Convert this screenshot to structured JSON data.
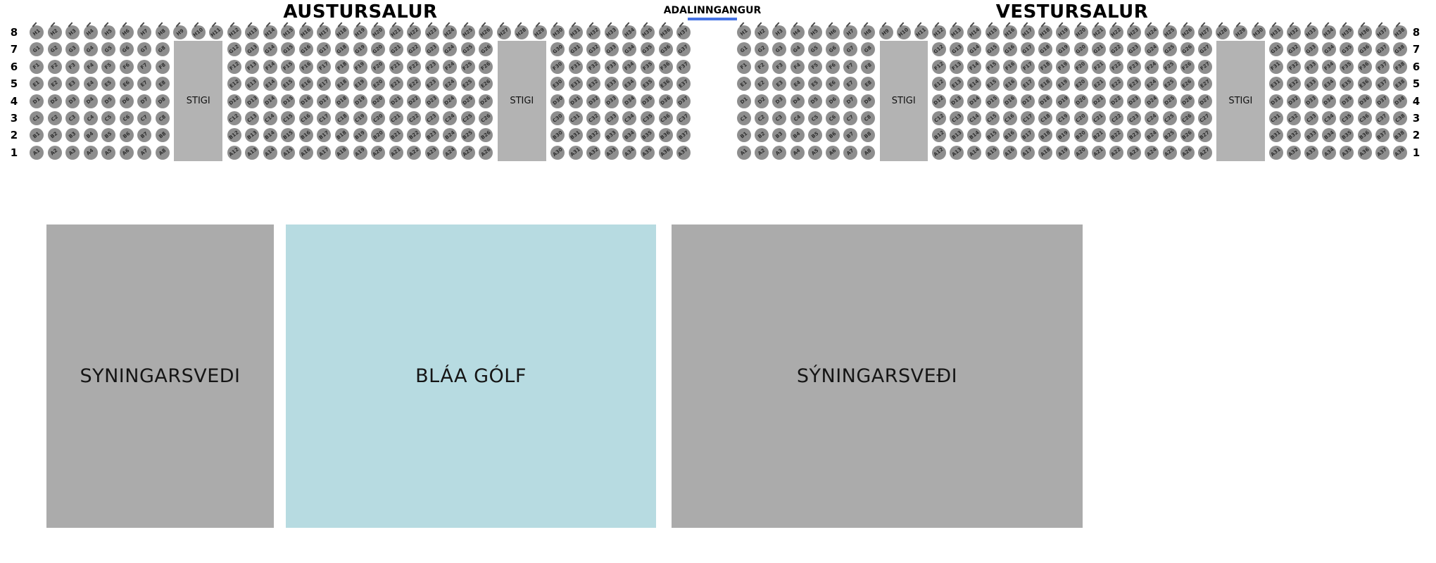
{
  "stigi_label": "STIGI",
  "entrance": {
    "label": "ADALINNGANGUR",
    "underline_color": "#4472e4"
  },
  "row_numbers": [
    "8",
    "7",
    "6",
    "5",
    "4",
    "3",
    "2",
    "1"
  ],
  "halls": [
    {
      "id": "austursalur",
      "title": "AUSTURSALUR",
      "rows": [
        {
          "number": "8",
          "letter": "H",
          "seat_blocks": [
            [
              1,
              37
            ]
          ]
        },
        {
          "number": "7",
          "letter": "G",
          "seat_blocks": [
            [
              1,
              8
            ],
            [
              12,
              26
            ],
            [
              30,
              37
            ]
          ]
        },
        {
          "number": "6",
          "letter": "F",
          "seat_blocks": [
            [
              1,
              8
            ],
            [
              12,
              26
            ],
            [
              30,
              37
            ]
          ]
        },
        {
          "number": "5",
          "letter": "E",
          "seat_blocks": [
            [
              1,
              8
            ],
            [
              12,
              26
            ],
            [
              30,
              37
            ]
          ]
        },
        {
          "number": "4",
          "letter": "D",
          "seat_blocks": [
            [
              1,
              8
            ],
            [
              12,
              26
            ],
            [
              30,
              37
            ]
          ]
        },
        {
          "number": "3",
          "letter": "C",
          "seat_blocks": [
            [
              1,
              8
            ],
            [
              12,
              26
            ],
            [
              30,
              37
            ]
          ]
        },
        {
          "number": "2",
          "letter": "B",
          "seat_blocks": [
            [
              1,
              8
            ],
            [
              12,
              26
            ],
            [
              30,
              37
            ]
          ]
        },
        {
          "number": "1",
          "letter": "A",
          "seat_blocks": [
            [
              1,
              8
            ],
            [
              12,
              26
            ],
            [
              30,
              37
            ]
          ]
        }
      ],
      "stigi_blocks": [
        {
          "columns": [
            9,
            11
          ]
        },
        {
          "columns": [
            27,
            29
          ]
        }
      ]
    },
    {
      "id": "vestursalur",
      "title": "VESTURSALUR",
      "rows": [
        {
          "number": "8",
          "letter": "H",
          "seat_blocks": [
            [
              1,
              38
            ]
          ]
        },
        {
          "number": "7",
          "letter": "G",
          "seat_blocks": [
            [
              1,
              8
            ],
            [
              12,
              27
            ],
            [
              31,
              38
            ]
          ]
        },
        {
          "number": "6",
          "letter": "F",
          "seat_blocks": [
            [
              1,
              8
            ],
            [
              12,
              27
            ],
            [
              31,
              38
            ]
          ]
        },
        {
          "number": "5",
          "letter": "E",
          "seat_blocks": [
            [
              1,
              8
            ],
            [
              12,
              27
            ],
            [
              31,
              38
            ]
          ]
        },
        {
          "number": "4",
          "letter": "D",
          "seat_blocks": [
            [
              1,
              8
            ],
            [
              12,
              27
            ],
            [
              31,
              38
            ]
          ]
        },
        {
          "number": "3",
          "letter": "C",
          "seat_blocks": [
            [
              1,
              8
            ],
            [
              12,
              27
            ],
            [
              31,
              38
            ]
          ]
        },
        {
          "number": "2",
          "letter": "B",
          "seat_blocks": [
            [
              1,
              8
            ],
            [
              12,
              27
            ],
            [
              31,
              38
            ]
          ]
        },
        {
          "number": "1",
          "letter": "A",
          "seat_blocks": [
            [
              1,
              8
            ],
            [
              12,
              27
            ],
            [
              31,
              38
            ]
          ]
        }
      ],
      "stigi_blocks": [
        {
          "columns": [
            9,
            11
          ]
        },
        {
          "columns": [
            28,
            30
          ]
        }
      ]
    }
  ],
  "floor_areas": [
    {
      "id": "syningarsvedi-left",
      "label": "SYNINGARSVEDI",
      "color": "#ababab"
    },
    {
      "id": "blaa-golf",
      "label": "BLÁA GÓLF",
      "color": "#b7dbe1"
    },
    {
      "id": "syningarsvedi-right",
      "label": "SÝNINGARSVEÐI",
      "color": "#ababab"
    }
  ],
  "colors": {
    "seat": "#8e8e8e",
    "seat_label": "#2f2f2f",
    "stigi": "#b3b3b3"
  }
}
